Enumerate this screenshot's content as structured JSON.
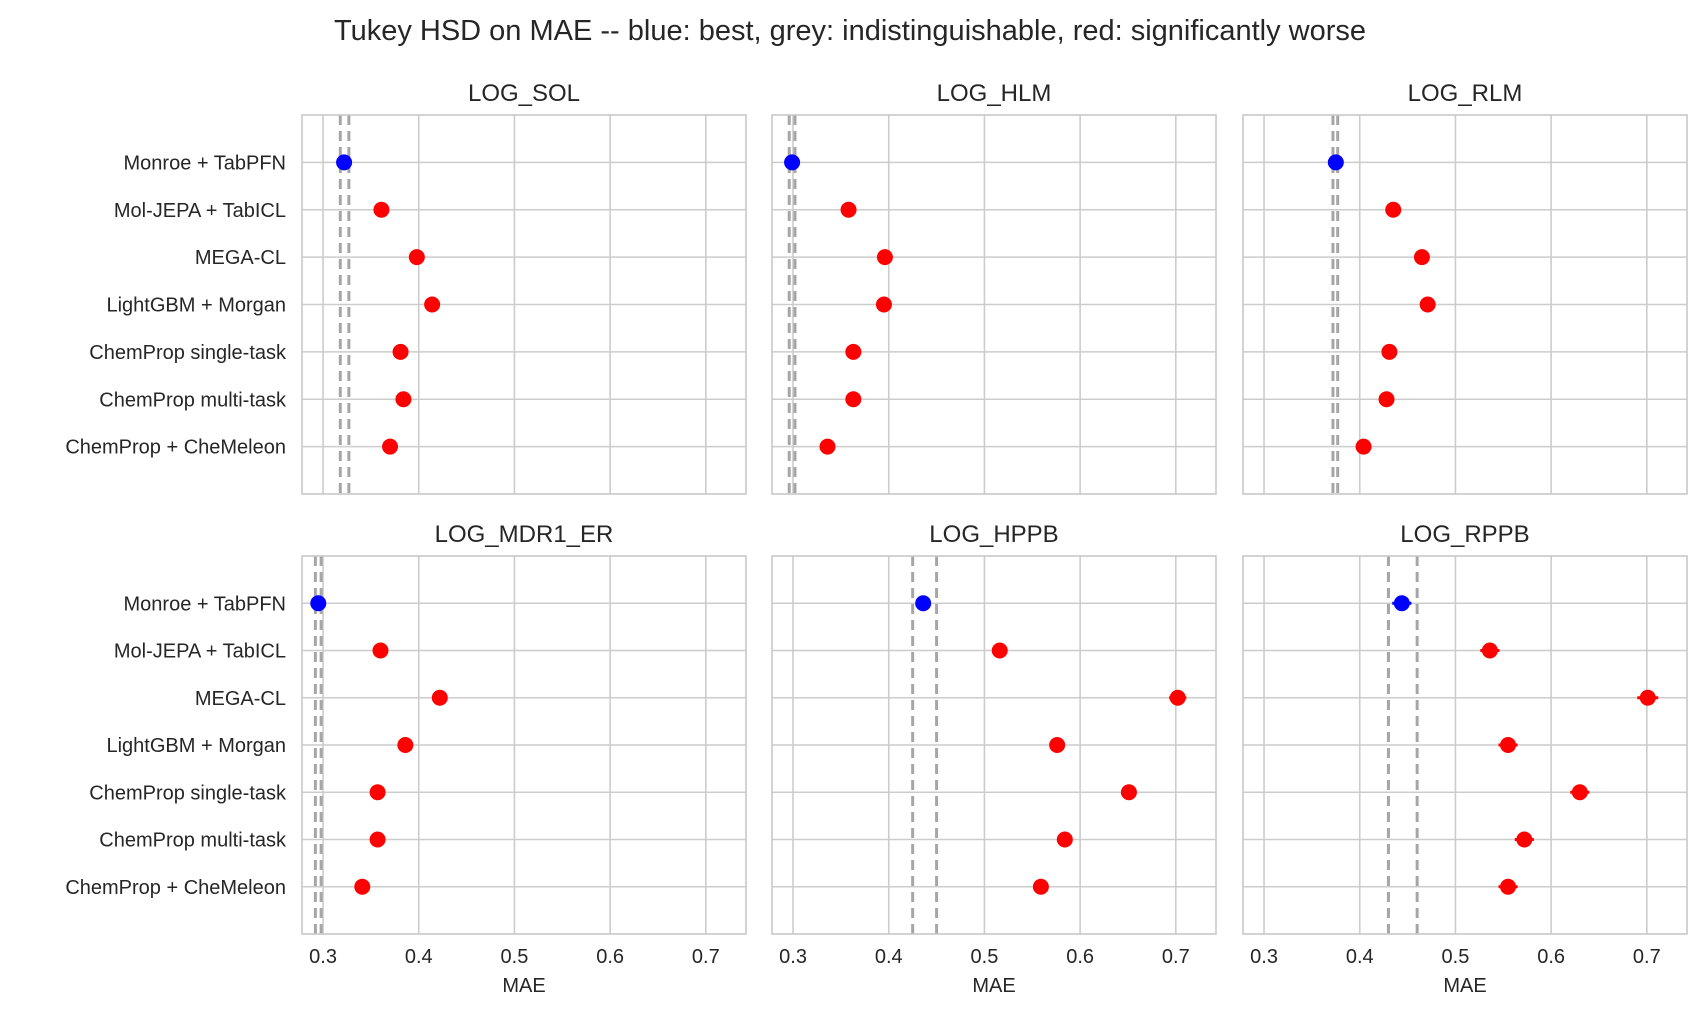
{
  "title": "Tukey HSD on MAE -- blue: best, grey: indistinguishable, red: significantly worse",
  "colors": {
    "best": "#0000ff",
    "worse": "#ff0000",
    "band": "#a6a6a6",
    "grid": "#cccccc",
    "frame": "#c8c8c8"
  },
  "chart_data": {
    "type": "scatter",
    "layout": "3 columns x 2 rows, shared x and y axes",
    "models": [
      "Monroe + TabPFN",
      "Mol-JEPA + TabICL",
      "MEGA-CL",
      "LightGBM + Morgan",
      "ChemProp single-task",
      "ChemProp multi-task",
      "ChemProp + CheMeleon"
    ],
    "xlabel": "MAE",
    "xticks": [
      "0.3",
      "0.4",
      "0.5",
      "0.6",
      "0.7"
    ],
    "xlim": [
      0.278,
      0.742
    ],
    "grid": true,
    "panels": [
      {
        "title": "LOG_SOL",
        "band": [
          0.318,
          0.327
        ],
        "values": [
          0.322,
          0.361,
          0.398,
          0.414,
          0.381,
          0.384,
          0.37
        ],
        "err": [
          0.002,
          0.002,
          0.002,
          0.002,
          0.002,
          0.002,
          0.002
        ],
        "status": [
          "best",
          "worse",
          "worse",
          "worse",
          "worse",
          "worse",
          "worse"
        ]
      },
      {
        "title": "LOG_HLM",
        "band": [
          0.296,
          0.302
        ],
        "values": [
          0.299,
          0.358,
          0.396,
          0.395,
          0.363,
          0.363,
          0.336
        ],
        "err": [
          0.002,
          0.002,
          0.002,
          0.002,
          0.002,
          0.002,
          0.002
        ],
        "status": [
          "best",
          "worse",
          "worse",
          "worse",
          "worse",
          "worse",
          "worse"
        ]
      },
      {
        "title": "LOG_RLM",
        "band": [
          0.372,
          0.377
        ],
        "values": [
          0.375,
          0.435,
          0.465,
          0.471,
          0.431,
          0.428,
          0.404
        ],
        "err": [
          0.002,
          0.002,
          0.002,
          0.002,
          0.002,
          0.002,
          0.002
        ],
        "status": [
          "best",
          "worse",
          "worse",
          "worse",
          "worse",
          "worse",
          "worse"
        ]
      },
      {
        "title": "LOG_MDR1_ER",
        "band": [
          0.292,
          0.298
        ],
        "values": [
          0.295,
          0.36,
          0.422,
          0.386,
          0.357,
          0.357,
          0.341
        ],
        "err": [
          0.002,
          0.002,
          0.002,
          0.002,
          0.002,
          0.002,
          0.002
        ],
        "status": [
          "best",
          "worse",
          "worse",
          "worse",
          "worse",
          "worse",
          "worse"
        ]
      },
      {
        "title": "LOG_HPPB",
        "band": [
          0.425,
          0.45
        ],
        "values": [
          0.436,
          0.516,
          0.702,
          0.576,
          0.651,
          0.584,
          0.559
        ],
        "err": [
          0.007,
          0.008,
          0.009,
          0.008,
          0.008,
          0.008,
          0.008
        ],
        "status": [
          "best",
          "worse",
          "worse",
          "worse",
          "worse",
          "worse",
          "worse"
        ]
      },
      {
        "title": "LOG_RPPB",
        "band": [
          0.43,
          0.46
        ],
        "values": [
          0.444,
          0.536,
          0.701,
          0.555,
          0.63,
          0.572,
          0.555
        ],
        "err": [
          0.01,
          0.01,
          0.011,
          0.01,
          0.01,
          0.01,
          0.01
        ],
        "status": [
          "best",
          "worse",
          "worse",
          "worse",
          "worse",
          "worse",
          "worse"
        ]
      }
    ]
  }
}
